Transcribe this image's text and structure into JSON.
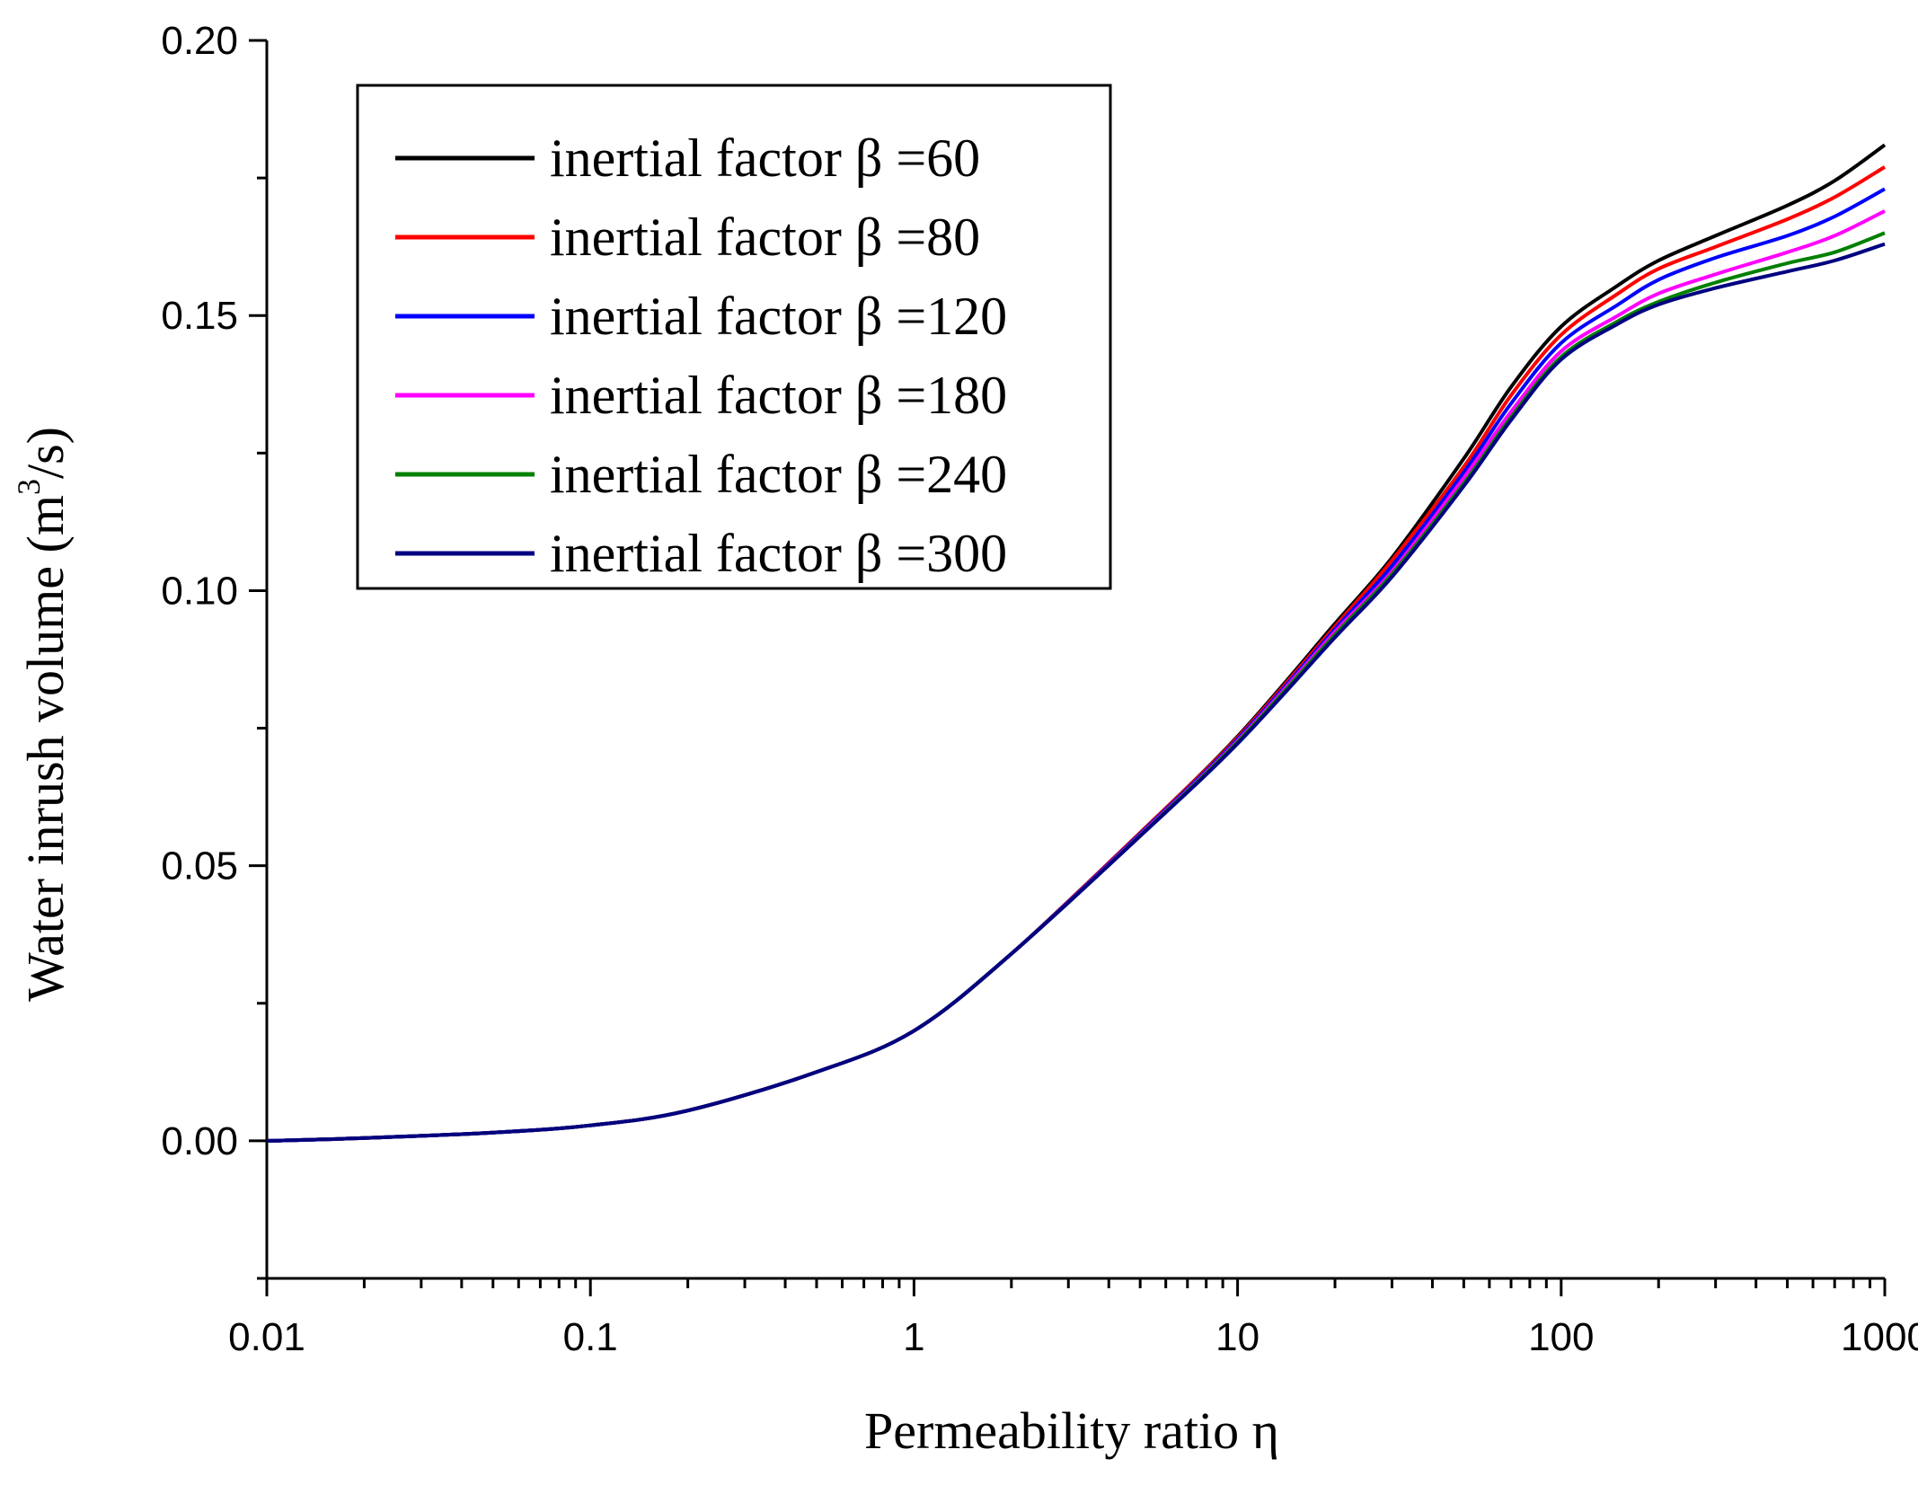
{
  "chart_data": {
    "type": "line",
    "title": "",
    "xlabel": "Permeability ratio η",
    "ylabel_prefix": "Water inrush volume (m",
    "ylabel_sup": "3",
    "ylabel_suffix": "/s)",
    "xscale": "log",
    "xlim": [
      0.01,
      1000
    ],
    "ylim": [
      -0.025,
      0.2
    ],
    "xticks": [
      0.01,
      0.1,
      1,
      10,
      100,
      1000
    ],
    "xtick_labels": [
      "0.01",
      "0.1",
      "1",
      "10",
      "100",
      "1000"
    ],
    "yticks": [
      0.0,
      0.05,
      0.1,
      0.15,
      0.2
    ],
    "ytick_labels": [
      "0.00",
      "0.05",
      "0.10",
      "0.15",
      "0.20"
    ],
    "legend_position": "top-left",
    "x": [
      0.01,
      0.02,
      0.05,
      0.1,
      0.2,
      0.5,
      1,
      2,
      5,
      10,
      20,
      30,
      50,
      70,
      100,
      150,
      200,
      300,
      500,
      700,
      1000
    ],
    "series": [
      {
        "name": "inertial factor β =60",
        "color": "#000000",
        "values": [
          0.0,
          0.0005,
          0.0015,
          0.0028,
          0.0055,
          0.0125,
          0.02,
          0.034,
          0.056,
          0.0735,
          0.094,
          0.106,
          0.124,
          0.137,
          0.148,
          0.1555,
          0.16,
          0.1645,
          0.17,
          0.1745,
          0.181
        ]
      },
      {
        "name": "inertial factor β =80",
        "color": "#ff0000",
        "values": [
          0.0,
          0.0005,
          0.0015,
          0.0028,
          0.0055,
          0.0125,
          0.02,
          0.034,
          0.056,
          0.0733,
          0.0935,
          0.1055,
          0.1225,
          0.1355,
          0.1465,
          0.154,
          0.1585,
          0.1625,
          0.1675,
          0.1715,
          0.177
        ]
      },
      {
        "name": "inertial factor β =120",
        "color": "#0000ff",
        "values": [
          0.0,
          0.0005,
          0.0015,
          0.0028,
          0.0055,
          0.0125,
          0.02,
          0.034,
          0.0558,
          0.073,
          0.093,
          0.1045,
          0.1215,
          0.134,
          0.145,
          0.152,
          0.1565,
          0.1605,
          0.1645,
          0.168,
          0.173
        ]
      },
      {
        "name": "inertial factor β =180",
        "color": "#ff00ff",
        "values": [
          0.0,
          0.0005,
          0.0015,
          0.0028,
          0.0055,
          0.0125,
          0.02,
          0.034,
          0.0556,
          0.0727,
          0.0925,
          0.1035,
          0.1205,
          0.1325,
          0.1435,
          0.15,
          0.154,
          0.1575,
          0.1615,
          0.1645,
          0.169
        ]
      },
      {
        "name": "inertial factor β =240",
        "color": "#008000",
        "values": [
          0.0,
          0.0005,
          0.0015,
          0.0028,
          0.0055,
          0.0125,
          0.02,
          0.034,
          0.0555,
          0.0725,
          0.092,
          0.103,
          0.1195,
          0.1315,
          0.1425,
          0.149,
          0.1525,
          0.156,
          0.1595,
          0.1615,
          0.165
        ]
      },
      {
        "name": "inertial factor β =300",
        "color": "#000080",
        "values": [
          0.0,
          0.0005,
          0.0015,
          0.0028,
          0.0055,
          0.0125,
          0.02,
          0.034,
          0.0554,
          0.0722,
          0.0915,
          0.1025,
          0.119,
          0.131,
          0.142,
          0.1485,
          0.152,
          0.155,
          0.158,
          0.16,
          0.163
        ]
      }
    ]
  }
}
